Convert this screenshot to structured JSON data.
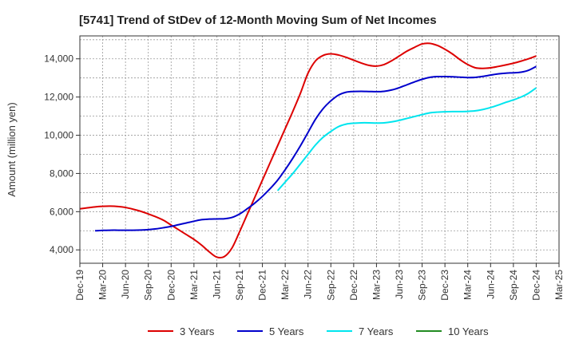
{
  "chart_data": {
    "type": "line",
    "title": "[5741]  Trend of StDev of 12-Month Moving Sum of Net Incomes",
    "xlabel": "",
    "ylabel": "Amount (million yen)",
    "ylim": [
      3300,
      15200
    ],
    "yticks": [
      4000,
      6000,
      8000,
      10000,
      12000,
      14000
    ],
    "ytick_labels": [
      "4,000",
      "6,000",
      "8,000",
      "10,000",
      "12,000",
      "14,000"
    ],
    "x_ticks": [
      "Dec-19",
      "Mar-20",
      "Jun-20",
      "Sep-20",
      "Dec-20",
      "Mar-21",
      "Jun-21",
      "Sep-21",
      "Dec-21",
      "Mar-22",
      "Jun-22",
      "Sep-22",
      "Dec-22",
      "Mar-23",
      "Jun-23",
      "Sep-23",
      "Dec-23",
      "Mar-24",
      "Jun-24",
      "Sep-24",
      "Dec-24",
      "Mar-25"
    ],
    "grid": true,
    "legend_position": "bottom",
    "series": [
      {
        "name": "3 Years",
        "color": "#dd0000",
        "points": [
          [
            "Dec-19",
            6150
          ],
          [
            "Jan-20",
            6200
          ],
          [
            "Feb-20",
            6250
          ],
          [
            "Mar-20",
            6280
          ],
          [
            "Apr-20",
            6290
          ],
          [
            "May-20",
            6270
          ],
          [
            "Jun-20",
            6220
          ],
          [
            "Jul-20",
            6130
          ],
          [
            "Aug-20",
            6020
          ],
          [
            "Sep-20",
            5880
          ],
          [
            "Oct-20",
            5730
          ],
          [
            "Nov-20",
            5550
          ],
          [
            "Dec-20",
            5300
          ],
          [
            "Jan-21",
            5050
          ],
          [
            "Feb-21",
            4800
          ],
          [
            "Mar-21",
            4550
          ],
          [
            "Apr-21",
            4250
          ],
          [
            "May-21",
            3900
          ],
          [
            "Jun-21",
            3620
          ],
          [
            "Jul-21",
            3650
          ],
          [
            "Aug-21",
            4100
          ],
          [
            "Sep-21",
            4950
          ],
          [
            "Oct-21",
            5850
          ],
          [
            "Nov-21",
            6750
          ],
          [
            "Dec-21",
            7650
          ],
          [
            "Jan-22",
            8550
          ],
          [
            "Feb-22",
            9450
          ],
          [
            "Mar-22",
            10350
          ],
          [
            "Apr-22",
            11250
          ],
          [
            "May-22",
            12200
          ],
          [
            "Jun-22",
            13250
          ],
          [
            "Jul-22",
            13900
          ],
          [
            "Aug-22",
            14180
          ],
          [
            "Sep-22",
            14260
          ],
          [
            "Oct-22",
            14200
          ],
          [
            "Nov-22",
            14080
          ],
          [
            "Dec-22",
            13930
          ],
          [
            "Jan-23",
            13780
          ],
          [
            "Feb-23",
            13660
          ],
          [
            "Mar-23",
            13620
          ],
          [
            "Apr-23",
            13700
          ],
          [
            "May-23",
            13900
          ],
          [
            "Jun-23",
            14150
          ],
          [
            "Jul-23",
            14400
          ],
          [
            "Aug-23",
            14600
          ],
          [
            "Sep-23",
            14780
          ],
          [
            "Oct-23",
            14810
          ],
          [
            "Nov-23",
            14700
          ],
          [
            "Dec-23",
            14500
          ],
          [
            "Jan-24",
            14250
          ],
          [
            "Feb-24",
            13950
          ],
          [
            "Mar-24",
            13700
          ],
          [
            "Apr-24",
            13530
          ],
          [
            "May-24",
            13500
          ],
          [
            "Jun-24",
            13530
          ],
          [
            "Jul-24",
            13600
          ],
          [
            "Aug-24",
            13680
          ],
          [
            "Sep-24",
            13770
          ],
          [
            "Oct-24",
            13880
          ],
          [
            "Nov-24",
            14000
          ],
          [
            "Dec-24",
            14150
          ]
        ]
      },
      {
        "name": "5 Years",
        "color": "#0000cc",
        "points": [
          [
            "Feb-20",
            5000
          ],
          [
            "Mar-20",
            5020
          ],
          [
            "Apr-20",
            5030
          ],
          [
            "May-20",
            5030
          ],
          [
            "Jun-20",
            5030
          ],
          [
            "Jul-20",
            5030
          ],
          [
            "Aug-20",
            5040
          ],
          [
            "Sep-20",
            5060
          ],
          [
            "Oct-20",
            5100
          ],
          [
            "Nov-20",
            5160
          ],
          [
            "Dec-20",
            5230
          ],
          [
            "Jan-21",
            5320
          ],
          [
            "Feb-21",
            5410
          ],
          [
            "Mar-21",
            5500
          ],
          [
            "Apr-21",
            5580
          ],
          [
            "May-21",
            5610
          ],
          [
            "Jun-21",
            5620
          ],
          [
            "Jul-21",
            5630
          ],
          [
            "Aug-21",
            5700
          ],
          [
            "Sep-21",
            5880
          ],
          [
            "Oct-21",
            6150
          ],
          [
            "Nov-21",
            6450
          ],
          [
            "Dec-21",
            6800
          ],
          [
            "Jan-22",
            7200
          ],
          [
            "Feb-22",
            7650
          ],
          [
            "Mar-22",
            8200
          ],
          [
            "Apr-22",
            8800
          ],
          [
            "May-22",
            9450
          ],
          [
            "Jun-22",
            10150
          ],
          [
            "Jul-22",
            10850
          ],
          [
            "Aug-22",
            11400
          ],
          [
            "Sep-22",
            11800
          ],
          [
            "Oct-22",
            12100
          ],
          [
            "Nov-22",
            12250
          ],
          [
            "Dec-22",
            12290
          ],
          [
            "Jan-23",
            12300
          ],
          [
            "Feb-23",
            12290
          ],
          [
            "Mar-23",
            12280
          ],
          [
            "Apr-23",
            12300
          ],
          [
            "May-23",
            12370
          ],
          [
            "Jun-23",
            12490
          ],
          [
            "Jul-23",
            12640
          ],
          [
            "Aug-23",
            12790
          ],
          [
            "Sep-23",
            12930
          ],
          [
            "Oct-23",
            13030
          ],
          [
            "Nov-23",
            13070
          ],
          [
            "Dec-23",
            13070
          ],
          [
            "Jan-24",
            13060
          ],
          [
            "Feb-24",
            13040
          ],
          [
            "Mar-24",
            13020
          ],
          [
            "Apr-24",
            13030
          ],
          [
            "May-24",
            13080
          ],
          [
            "Jun-24",
            13150
          ],
          [
            "Jul-24",
            13210
          ],
          [
            "Aug-24",
            13250
          ],
          [
            "Sep-24",
            13270
          ],
          [
            "Oct-24",
            13300
          ],
          [
            "Nov-24",
            13400
          ],
          [
            "Dec-24",
            13600
          ]
        ]
      },
      {
        "name": "7 Years",
        "color": "#00e5ee",
        "points": [
          [
            "Feb-22",
            7100
          ],
          [
            "Mar-22",
            7550
          ],
          [
            "Apr-22",
            8000
          ],
          [
            "May-22",
            8500
          ],
          [
            "Jun-22",
            9000
          ],
          [
            "Jul-22",
            9500
          ],
          [
            "Aug-22",
            9900
          ],
          [
            "Sep-22",
            10200
          ],
          [
            "Oct-22",
            10450
          ],
          [
            "Nov-22",
            10580
          ],
          [
            "Dec-22",
            10630
          ],
          [
            "Jan-23",
            10650
          ],
          [
            "Feb-23",
            10650
          ],
          [
            "Mar-23",
            10640
          ],
          [
            "Apr-23",
            10650
          ],
          [
            "May-23",
            10700
          ],
          [
            "Jun-23",
            10780
          ],
          [
            "Jul-23",
            10880
          ],
          [
            "Aug-23",
            10980
          ],
          [
            "Sep-23",
            11080
          ],
          [
            "Oct-23",
            11170
          ],
          [
            "Nov-23",
            11210
          ],
          [
            "Dec-23",
            11230
          ],
          [
            "Jan-24",
            11240
          ],
          [
            "Feb-24",
            11240
          ],
          [
            "Mar-24",
            11250
          ],
          [
            "Apr-24",
            11280
          ],
          [
            "May-24",
            11350
          ],
          [
            "Jun-24",
            11450
          ],
          [
            "Jul-24",
            11580
          ],
          [
            "Aug-24",
            11720
          ],
          [
            "Sep-24",
            11850
          ],
          [
            "Oct-24",
            12000
          ],
          [
            "Nov-24",
            12200
          ],
          [
            "Dec-24",
            12480
          ]
        ]
      },
      {
        "name": "10 Years",
        "color": "#228b22",
        "points": []
      }
    ]
  }
}
